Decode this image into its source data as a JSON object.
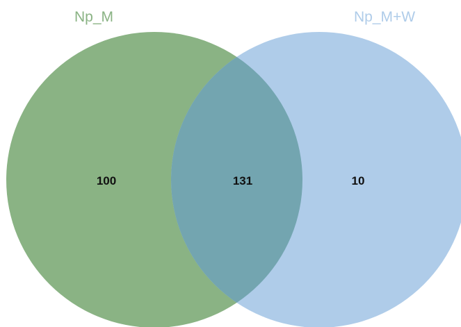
{
  "sets": [
    {
      "name": "Np_M",
      "color": "#8ab384"
    },
    {
      "name": "Np_M+W",
      "color": "#afcce9"
    }
  ],
  "overlap_color": "#73a5b0",
  "regions": {
    "left_only": "100",
    "intersection": "131",
    "right_only": "10"
  }
}
